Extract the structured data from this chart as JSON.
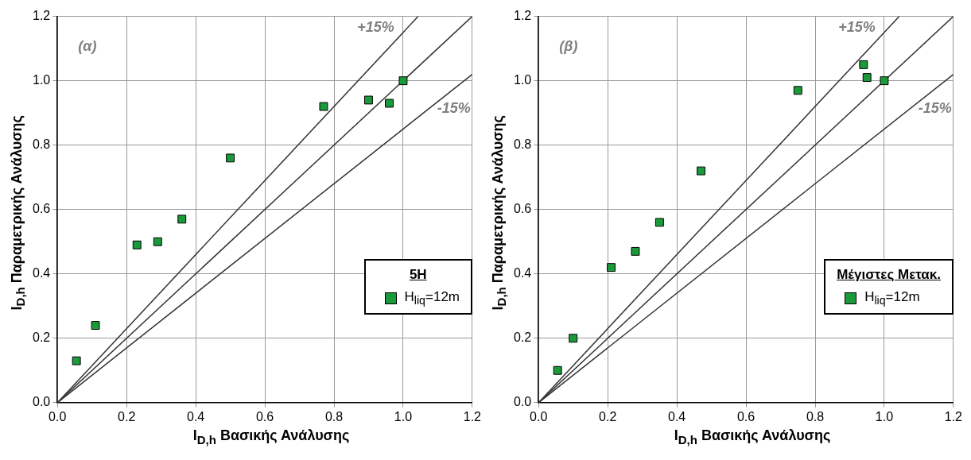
{
  "chart_data": [
    {
      "type": "scatter",
      "xlabel": "I$_{D,h}$ Βασικής Ανάλυσης",
      "ylabel": "I$_{D,h}$ Παραμετρικής Ανάλυσης",
      "legend_title": "5H",
      "legend": "right",
      "grid": true,
      "xlim": [
        0,
        1.2
      ],
      "ylim": [
        0,
        1.2
      ],
      "xticks": [
        {
          "value": 0,
          "label": "0.0"
        },
        {
          "value": 0.2,
          "label": "0.2"
        },
        {
          "value": 0.4,
          "label": "0.4"
        },
        {
          "value": 0.6,
          "label": "0.6"
        },
        {
          "value": 0.8,
          "label": "0.8"
        },
        {
          "value": 1,
          "label": "1.0"
        },
        {
          "value": 1.2,
          "label": "1.2"
        }
      ],
      "yticks": [
        {
          "value": 0,
          "label": "0.0"
        },
        {
          "value": 0.2,
          "label": "0.2"
        },
        {
          "value": 0.4,
          "label": "0.4"
        },
        {
          "value": 0.6,
          "label": "0.6"
        },
        {
          "value": 0.8,
          "label": "0.8"
        },
        {
          "value": 1,
          "label": "1.0"
        },
        {
          "value": 1.2,
          "label": "1.2"
        }
      ],
      "annotations": [
        "(α)"
      ],
      "series": [
        {
          "name": "H$_{liq}$=12m",
          "type": "scatter",
          "marker": "square",
          "color": "#1a9a3a",
          "x": [
            0.055,
            0.11,
            0.23,
            0.29,
            0.36,
            0.5,
            0.77,
            0.9,
            0.96,
            1.0
          ],
          "values": [
            0.13,
            0.24,
            0.49,
            0.5,
            0.57,
            0.76,
            0.92,
            0.94,
            0.93,
            1.0
          ]
        },
        {
          "type": "line",
          "marker": "none",
          "color": "#333333",
          "x": [
            0,
            1.2
          ],
          "values": [
            0,
            1.2
          ]
        },
        {
          "name": "+15%",
          "type": "line",
          "marker": "none",
          "color": "#333333",
          "x": [
            0,
            1.0435
          ],
          "values": [
            0,
            1.2
          ]
        },
        {
          "name": "-15%",
          "type": "line",
          "marker": "none",
          "color": "#333333",
          "x": [
            0,
            1.2
          ],
          "values": [
            0,
            1.02
          ]
        }
      ]
    },
    {
      "type": "scatter",
      "xlabel": "I$_{D,h}$ Βασικής Ανάλυσης",
      "ylabel": "I$_{D,h}$ Παραμετρικής Ανάλυσης",
      "legend_title": "Μέγιστες Μετακ.",
      "legend": "right",
      "grid": true,
      "xlim": [
        0,
        1.2
      ],
      "ylim": [
        0,
        1.2
      ],
      "xticks": [
        {
          "value": 0,
          "label": "0.0"
        },
        {
          "value": 0.2,
          "label": "0.2"
        },
        {
          "value": 0.4,
          "label": "0.4"
        },
        {
          "value": 0.6,
          "label": "0.6"
        },
        {
          "value": 0.8,
          "label": "0.8"
        },
        {
          "value": 1,
          "label": "1.0"
        },
        {
          "value": 1.2,
          "label": "1.2"
        }
      ],
      "yticks": [
        {
          "value": 0,
          "label": "0.0"
        },
        {
          "value": 0.2,
          "label": "0.2"
        },
        {
          "value": 0.4,
          "label": "0.4"
        },
        {
          "value": 0.6,
          "label": "0.6"
        },
        {
          "value": 0.8,
          "label": "0.8"
        },
        {
          "value": 1,
          "label": "1.0"
        },
        {
          "value": 1.2,
          "label": "1.2"
        }
      ],
      "annotations": [
        "(β)"
      ],
      "series": [
        {
          "name": "H$_{liq}$=12m",
          "type": "scatter",
          "marker": "square",
          "color": "#1a9a3a",
          "x": [
            0.055,
            0.1,
            0.21,
            0.28,
            0.35,
            0.47,
            0.75,
            0.94,
            0.95,
            1.0
          ],
          "values": [
            0.1,
            0.2,
            0.42,
            0.47,
            0.56,
            0.72,
            0.97,
            1.05,
            1.01,
            1.0
          ]
        },
        {
          "type": "line",
          "marker": "none",
          "color": "#333333",
          "x": [
            0,
            1.2
          ],
          "values": [
            0,
            1.2
          ]
        },
        {
          "name": "+15%",
          "type": "line",
          "marker": "none",
          "color": "#333333",
          "x": [
            0,
            1.0435
          ],
          "values": [
            0,
            1.2
          ]
        },
        {
          "name": "-15%",
          "type": "line",
          "marker": "none",
          "color": "#333333",
          "x": [
            0,
            1.2
          ],
          "values": [
            0,
            1.02
          ]
        }
      ]
    }
  ]
}
